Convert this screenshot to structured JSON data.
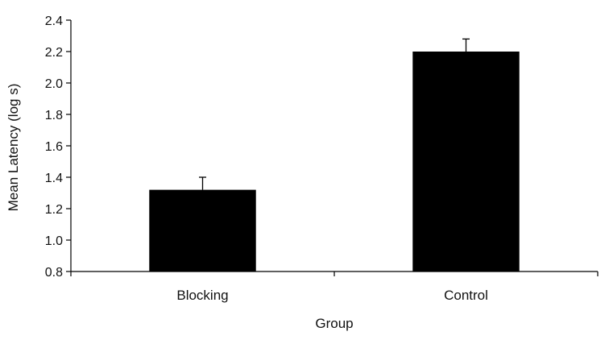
{
  "chart_data": {
    "type": "bar",
    "categories": [
      "Blocking",
      "Control"
    ],
    "values": [
      1.32,
      2.2
    ],
    "error_upper": [
      0.08,
      0.08
    ],
    "bar_color": "#000000",
    "xlabel": "Group",
    "ylabel": "Mean Latency (log s)",
    "ylim": [
      0.8,
      2.4
    ],
    "yticks": [
      0.8,
      1.0,
      1.2,
      1.4,
      1.6,
      1.8,
      2.0,
      2.2,
      2.4
    ],
    "ytick_labels": [
      "0.8",
      "1.0",
      "1.2",
      "1.4",
      "1.6",
      "1.8",
      "2.0",
      "2.2",
      "2.4"
    ],
    "grid": false,
    "legend": "none"
  }
}
